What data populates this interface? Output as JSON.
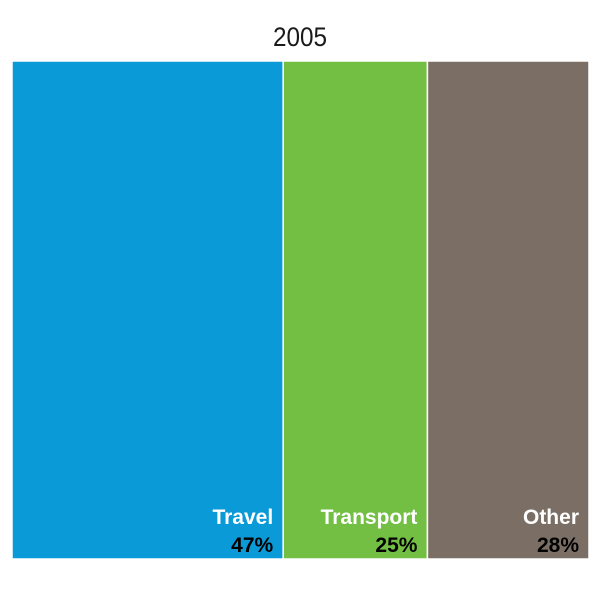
{
  "chart_data": {
    "type": "bar",
    "stacked": true,
    "orientation": "horizontal-proportional",
    "title": "2005",
    "categories": [
      "Travel",
      "Transport",
      "Other"
    ],
    "values": [
      47,
      25,
      28
    ],
    "value_labels": [
      "47%",
      "25%",
      "28%"
    ],
    "unit": "%",
    "colors": [
      "#0a9ad7",
      "#72bf44",
      "#7b6f65"
    ],
    "grid": false,
    "legend": "none"
  }
}
